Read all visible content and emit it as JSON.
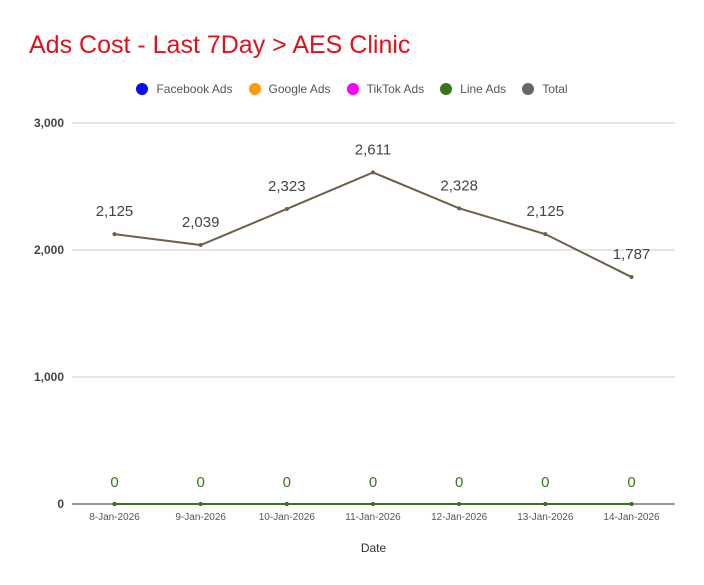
{
  "chart_data": {
    "type": "line",
    "title": "Ads Cost - Last 7Day > AES Clinic",
    "title_color": "#e0111a",
    "xlabel": "Date",
    "ylabel": "",
    "categories": [
      "8-Jan-2026",
      "9-Jan-2026",
      "10-Jan-2026",
      "11-Jan-2026",
      "12-Jan-2026",
      "13-Jan-2026",
      "14-Jan-2026"
    ],
    "ylim": [
      0,
      3000
    ],
    "yticks": [
      0,
      1000,
      2000,
      3000
    ],
    "ytick_labels": [
      "0",
      "1,000",
      "2,000",
      "3,000"
    ],
    "grid": true,
    "legend_position": "top-center",
    "series": [
      {
        "name": "Facebook Ads",
        "color": "#0b0bf0",
        "values": [
          0,
          0,
          0,
          0,
          0,
          0,
          0
        ],
        "show_labels": false,
        "labels": []
      },
      {
        "name": "Google Ads",
        "color": "#ff9900",
        "values": [
          0,
          0,
          0,
          0,
          0,
          0,
          0
        ],
        "show_labels": false,
        "labels": []
      },
      {
        "name": "TikTok Ads",
        "color": "#ff00ff",
        "values": [
          0,
          0,
          0,
          0,
          0,
          0,
          0
        ],
        "show_labels": false,
        "labels": []
      },
      {
        "name": "Line Ads",
        "color": "#38761d",
        "values": [
          0,
          0,
          0,
          0,
          0,
          0,
          0
        ],
        "show_labels": true,
        "labels": [
          "0",
          "0",
          "0",
          "0",
          "0",
          "0",
          "0"
        ]
      },
      {
        "name": "Total",
        "color": "#666666",
        "line_color": "#6e5f4a",
        "values": [
          2125,
          2039,
          2323,
          2611,
          2328,
          2125,
          1787
        ],
        "show_labels": true,
        "labels": [
          "2,125",
          "2,039",
          "2,323",
          "2,611",
          "2,328",
          "2,125",
          "1,787"
        ]
      }
    ]
  }
}
